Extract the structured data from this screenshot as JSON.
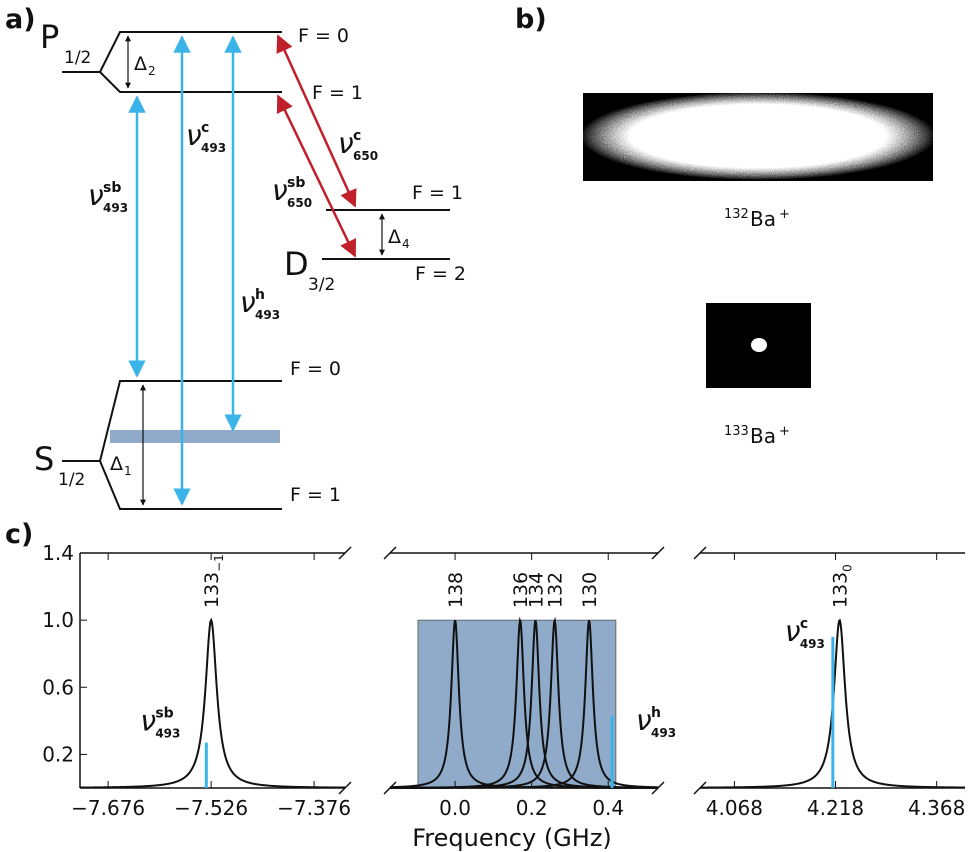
{
  "diagram": {
    "panel_label": "a)",
    "levels": {
      "P": {
        "letter": "P",
        "sub": "1/2"
      },
      "D": {
        "letter": "D",
        "sub": "3/2"
      },
      "S": {
        "letter": "S",
        "sub": "1/2"
      }
    },
    "F": [
      "F = 0",
      "F = 1",
      "F = 1",
      "F = 2",
      "F = 0",
      "F = 1"
    ],
    "splittings": [
      {
        "symbol": "Δ",
        "sub": "2"
      },
      {
        "symbol": "Δ",
        "sub": "4"
      },
      {
        "symbol": "Δ",
        "sub": "1"
      }
    ],
    "transitions": [
      {
        "symbol": "ν",
        "sup": "sb",
        "sub": "493"
      },
      {
        "symbol": "ν",
        "sup": "c",
        "sub": "493"
      },
      {
        "symbol": "ν",
        "sup": "h",
        "sub": "493"
      },
      {
        "symbol": "ν",
        "sup": "c",
        "sub": "650"
      },
      {
        "symbol": "ν",
        "sup": "sb",
        "sub": "650"
      }
    ]
  },
  "images": {
    "panel_label": "b)",
    "labels": [
      {
        "mass": "132",
        "element": "Ba",
        "charge": "+"
      },
      {
        "mass": "133",
        "element": "Ba",
        "charge": "+"
      }
    ]
  },
  "plots_label": "c)",
  "chart_data": [
    {
      "type": "line",
      "xlim": [
        -7.717,
        -7.331
      ],
      "xticks": [
        {
          "value": -7.676,
          "label": "−7.676"
        },
        {
          "value": -7.526,
          "label": "−7.526"
        },
        {
          "value": -7.376,
          "label": "−7.376"
        }
      ],
      "ylim": [
        0,
        1.4
      ],
      "yticks": [
        0.2,
        0.6,
        {
          "value": 1,
          "label": "1.0"
        },
        1.4
      ],
      "series": [
        {
          "label": {
            "text": "133",
            "sub": "−1"
          },
          "center": -7.526,
          "height": 1,
          "hwhm": 0.01,
          "color": "#111111"
        }
      ],
      "markers": [
        {
          "x": -7.533,
          "value": 0.27,
          "color": "#3ab4e8",
          "label": {
            "symbol": "ν",
            "sup": "sb",
            "sub": "493"
          }
        }
      ]
    },
    {
      "type": "line",
      "xlim": [
        -0.17,
        0.53
      ],
      "xlabel": "Frequency (GHz)",
      "xticks": [
        {
          "value": 0,
          "label": "0.0"
        },
        0.2,
        0.4
      ],
      "ylim": [
        0,
        1.4
      ],
      "band": {
        "x": [
          -0.097,
          0.42
        ],
        "value": 1,
        "color": "#8fabc9"
      },
      "series": [
        {
          "label": {
            "text": "138"
          },
          "center": 0,
          "height": 1,
          "hwhm": 0.012,
          "color": "#111111"
        },
        {
          "label": {
            "text": "136"
          },
          "center": 0.17,
          "height": 1,
          "hwhm": 0.012,
          "color": "#111111"
        },
        {
          "label": {
            "text": "134"
          },
          "center": 0.21,
          "height": 1,
          "hwhm": 0.012,
          "color": "#111111"
        },
        {
          "label": {
            "text": "132"
          },
          "center": 0.26,
          "height": 1,
          "hwhm": 0.012,
          "color": "#111111"
        },
        {
          "label": {
            "text": "130"
          },
          "center": 0.35,
          "height": 1,
          "hwhm": 0.012,
          "color": "#111111"
        }
      ],
      "markers": [
        {
          "x": 0.41,
          "value": 0.43,
          "color": "#3ab4e8",
          "label": {
            "symbol": "ν",
            "sup": "h",
            "sub": "493"
          }
        }
      ]
    },
    {
      "type": "line",
      "xlim": [
        4.017,
        4.41
      ],
      "xticks": [
        4.068,
        4.218,
        4.368
      ],
      "ylim": [
        0,
        1.4
      ],
      "series": [
        {
          "label": {
            "text": "133",
            "sub": "0"
          },
          "center": 4.224,
          "height": 1,
          "hwhm": 0.01,
          "color": "#111111"
        }
      ],
      "markers": [
        {
          "x": 4.214,
          "value": 0.9,
          "color": "#3ab4e8",
          "label": {
            "symbol": "ν",
            "sup": "c",
            "sub": "493"
          }
        }
      ]
    }
  ]
}
